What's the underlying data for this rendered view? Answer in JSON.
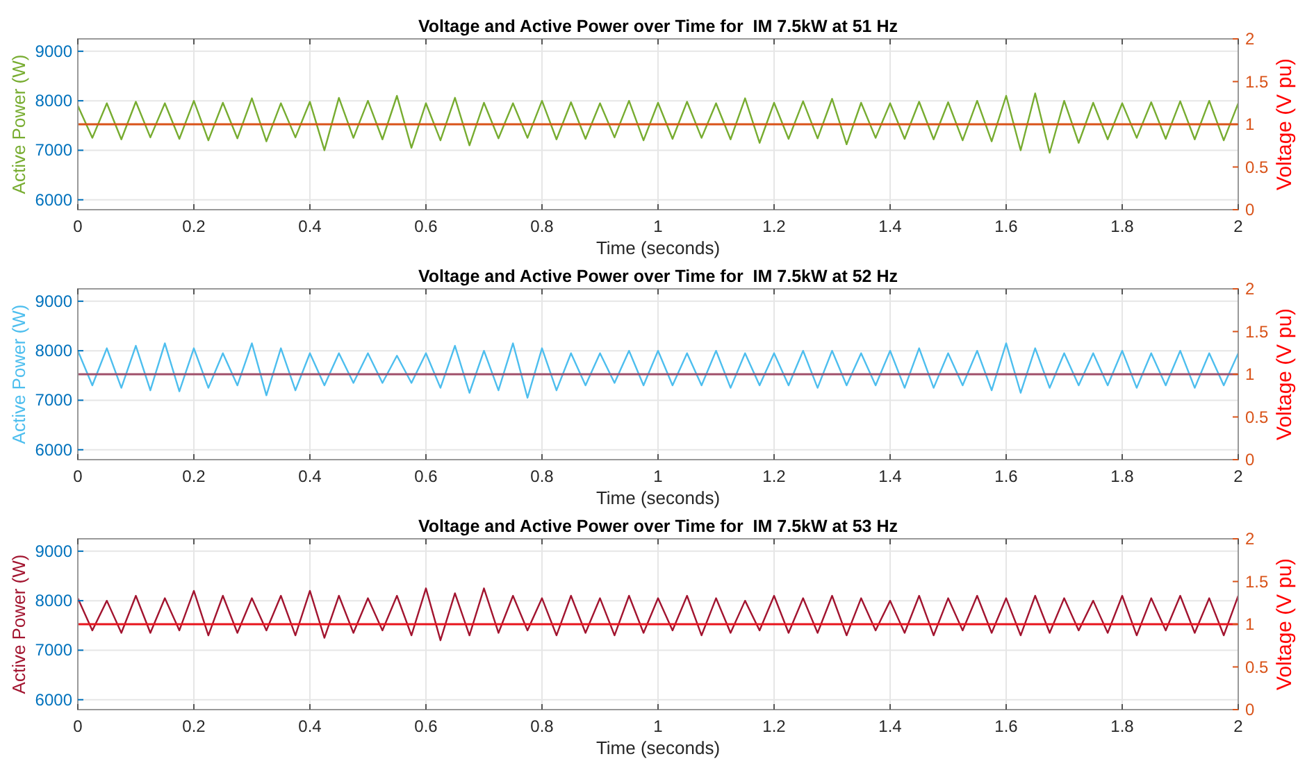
{
  "chart_data": [
    {
      "type": "line",
      "title": "Voltage and Active Power over Time for  IM 7.5kW at 51 Hz",
      "xlabel": "Time (seconds)",
      "ylabel": "Active Power (W)",
      "y2label": "Voltage (V pu)",
      "xlim": [
        0,
        2
      ],
      "xticks": [
        0,
        0.2,
        0.4,
        0.6,
        0.8,
        1,
        1.2,
        1.4,
        1.6,
        1.8,
        2
      ],
      "ylim": [
        5800,
        9250
      ],
      "yticks": [
        6000,
        7000,
        8000,
        9000
      ],
      "y2lim": [
        0,
        2
      ],
      "y2ticks": [
        0,
        0.5,
        1,
        1.5,
        2
      ],
      "grid": true,
      "x": [
        0,
        0.025,
        0.05,
        0.075,
        0.1,
        0.125,
        0.15,
        0.175,
        0.2,
        0.225,
        0.25,
        0.275,
        0.3,
        0.325,
        0.35,
        0.375,
        0.4,
        0.425,
        0.45,
        0.475,
        0.5,
        0.525,
        0.55,
        0.575,
        0.6,
        0.625,
        0.65,
        0.675,
        0.7,
        0.725,
        0.75,
        0.775,
        0.8,
        0.825,
        0.85,
        0.875,
        0.9,
        0.925,
        0.95,
        0.975,
        1,
        1.025,
        1.05,
        1.075,
        1.1,
        1.125,
        1.15,
        1.175,
        1.2,
        1.225,
        1.25,
        1.275,
        1.3,
        1.325,
        1.35,
        1.375,
        1.4,
        1.425,
        1.45,
        1.475,
        1.5,
        1.525,
        1.55,
        1.575,
        1.6,
        1.625,
        1.65,
        1.675,
        1.7,
        1.725,
        1.75,
        1.775,
        1.8,
        1.825,
        1.85,
        1.875,
        1.9,
        1.925,
        1.95,
        1.975,
        2
      ],
      "series": [
        {
          "color": "#77ac30",
          "values": [
            7900,
            7250,
            7950,
            7220,
            7980,
            7260,
            7950,
            7230,
            8000,
            7200,
            7960,
            7240,
            8050,
            7180,
            7950,
            7260,
            7980,
            7000,
            8060,
            7250,
            8000,
            7220,
            8100,
            7050,
            7950,
            7200,
            8060,
            7100,
            7960,
            7240,
            7950,
            7250,
            8000,
            7220,
            7970,
            7230,
            7950,
            7260,
            8000,
            7200,
            7960,
            7230,
            7980,
            7250,
            7950,
            7220,
            8050,
            7150,
            7960,
            7230,
            7990,
            7240,
            8040,
            7120,
            7960,
            7250,
            7950,
            7230,
            7980,
            7220,
            7970,
            7200,
            8000,
            7180,
            8100,
            7000,
            8150,
            6950,
            8000,
            7150,
            7960,
            7220,
            7950,
            7250,
            7970,
            7230,
            7990,
            7220,
            8000,
            7200,
            7950
          ]
        }
      ],
      "ref_lines": [
        {
          "axis": "y2",
          "value": 1,
          "color": "#d95319"
        }
      ]
    },
    {
      "type": "line",
      "title": "Voltage and Active Power over Time for  IM 7.5kW at 52 Hz",
      "xlabel": "Time (seconds)",
      "ylabel": "Active Power (W)",
      "y2label": "Voltage (V pu)",
      "xlim": [
        0,
        2
      ],
      "xticks": [
        0,
        0.2,
        0.4,
        0.6,
        0.8,
        1,
        1.2,
        1.4,
        1.6,
        1.8,
        2
      ],
      "ylim": [
        5800,
        9250
      ],
      "yticks": [
        6000,
        7000,
        8000,
        9000
      ],
      "y2lim": [
        0,
        2
      ],
      "y2ticks": [
        0,
        0.5,
        1,
        1.5,
        2
      ],
      "grid": true,
      "x": [
        0,
        0.025,
        0.05,
        0.075,
        0.1,
        0.125,
        0.15,
        0.175,
        0.2,
        0.225,
        0.25,
        0.275,
        0.3,
        0.325,
        0.35,
        0.375,
        0.4,
        0.425,
        0.45,
        0.475,
        0.5,
        0.525,
        0.55,
        0.575,
        0.6,
        0.625,
        0.65,
        0.675,
        0.7,
        0.725,
        0.75,
        0.775,
        0.8,
        0.825,
        0.85,
        0.875,
        0.9,
        0.925,
        0.95,
        0.975,
        1,
        1.025,
        1.05,
        1.075,
        1.1,
        1.125,
        1.15,
        1.175,
        1.2,
        1.225,
        1.25,
        1.275,
        1.3,
        1.325,
        1.35,
        1.375,
        1.4,
        1.425,
        1.45,
        1.475,
        1.5,
        1.525,
        1.55,
        1.575,
        1.6,
        1.625,
        1.65,
        1.675,
        1.7,
        1.725,
        1.75,
        1.775,
        1.8,
        1.825,
        1.85,
        1.875,
        1.9,
        1.925,
        1.95,
        1.975,
        2
      ],
      "series": [
        {
          "color": "#4dbeee",
          "values": [
            8000,
            7300,
            8050,
            7250,
            8100,
            7200,
            8150,
            7180,
            8050,
            7250,
            7950,
            7300,
            8150,
            7100,
            8050,
            7200,
            7950,
            7300,
            7950,
            7350,
            7950,
            7350,
            7900,
            7350,
            7950,
            7250,
            8100,
            7150,
            8000,
            7200,
            8150,
            7050,
            8050,
            7200,
            7950,
            7300,
            7950,
            7350,
            8000,
            7300,
            8000,
            7300,
            7950,
            7300,
            8000,
            7250,
            7950,
            7300,
            7950,
            7300,
            8000,
            7250,
            8000,
            7300,
            7950,
            7300,
            8000,
            7250,
            8050,
            7250,
            7950,
            7300,
            8000,
            7200,
            8150,
            7150,
            8050,
            7250,
            7950,
            7300,
            7950,
            7300,
            8000,
            7250,
            7950,
            7300,
            8000,
            7250,
            7950,
            7300,
            7950
          ]
        }
      ],
      "ref_lines": [
        {
          "axis": "y2",
          "value": 1,
          "color": "#a0506a"
        }
      ]
    },
    {
      "type": "line",
      "title": "Voltage and Active Power over Time for  IM 7.5kW at 53 Hz",
      "xlabel": "Time (seconds)",
      "ylabel": "Active Power (W)",
      "y2label": "Voltage (V pu)",
      "xlim": [
        0,
        2
      ],
      "xticks": [
        0,
        0.2,
        0.4,
        0.6,
        0.8,
        1,
        1.2,
        1.4,
        1.6,
        1.8,
        2
      ],
      "ylim": [
        5800,
        9250
      ],
      "yticks": [
        6000,
        7000,
        8000,
        9000
      ],
      "y2lim": [
        0,
        2
      ],
      "y2ticks": [
        0,
        0.5,
        1,
        1.5,
        2
      ],
      "grid": true,
      "x": [
        0,
        0.025,
        0.05,
        0.075,
        0.1,
        0.125,
        0.15,
        0.175,
        0.2,
        0.225,
        0.25,
        0.275,
        0.3,
        0.325,
        0.35,
        0.375,
        0.4,
        0.425,
        0.45,
        0.475,
        0.5,
        0.525,
        0.55,
        0.575,
        0.6,
        0.625,
        0.65,
        0.675,
        0.7,
        0.725,
        0.75,
        0.775,
        0.8,
        0.825,
        0.85,
        0.875,
        0.9,
        0.925,
        0.95,
        0.975,
        1,
        1.025,
        1.05,
        1.075,
        1.1,
        1.125,
        1.15,
        1.175,
        1.2,
        1.225,
        1.25,
        1.275,
        1.3,
        1.325,
        1.35,
        1.375,
        1.4,
        1.425,
        1.45,
        1.475,
        1.5,
        1.525,
        1.55,
        1.575,
        1.6,
        1.625,
        1.65,
        1.675,
        1.7,
        1.725,
        1.75,
        1.775,
        1.8,
        1.825,
        1.85,
        1.875,
        1.9,
        1.925,
        1.95,
        1.975,
        2
      ],
      "series": [
        {
          "color": "#a2142f",
          "values": [
            8050,
            7400,
            8000,
            7350,
            8100,
            7350,
            8050,
            7400,
            8200,
            7300,
            8100,
            7350,
            8050,
            7400,
            8100,
            7300,
            8200,
            7250,
            8100,
            7350,
            8050,
            7400,
            8100,
            7300,
            8250,
            7200,
            8150,
            7300,
            8250,
            7350,
            8100,
            7400,
            8050,
            7300,
            8100,
            7350,
            8050,
            7300,
            8100,
            7350,
            8050,
            7400,
            8100,
            7300,
            8050,
            7350,
            8000,
            7400,
            8100,
            7350,
            8050,
            7350,
            8100,
            7300,
            8050,
            7400,
            8000,
            7350,
            8100,
            7300,
            8050,
            7400,
            8100,
            7350,
            8050,
            7300,
            8100,
            7350,
            8050,
            7400,
            8000,
            7350,
            8100,
            7300,
            8050,
            7400,
            8100,
            7350,
            8050,
            7300,
            8100
          ]
        }
      ],
      "ref_lines": [
        {
          "axis": "y2",
          "value": 1,
          "color": "#e8141c"
        }
      ]
    }
  ]
}
